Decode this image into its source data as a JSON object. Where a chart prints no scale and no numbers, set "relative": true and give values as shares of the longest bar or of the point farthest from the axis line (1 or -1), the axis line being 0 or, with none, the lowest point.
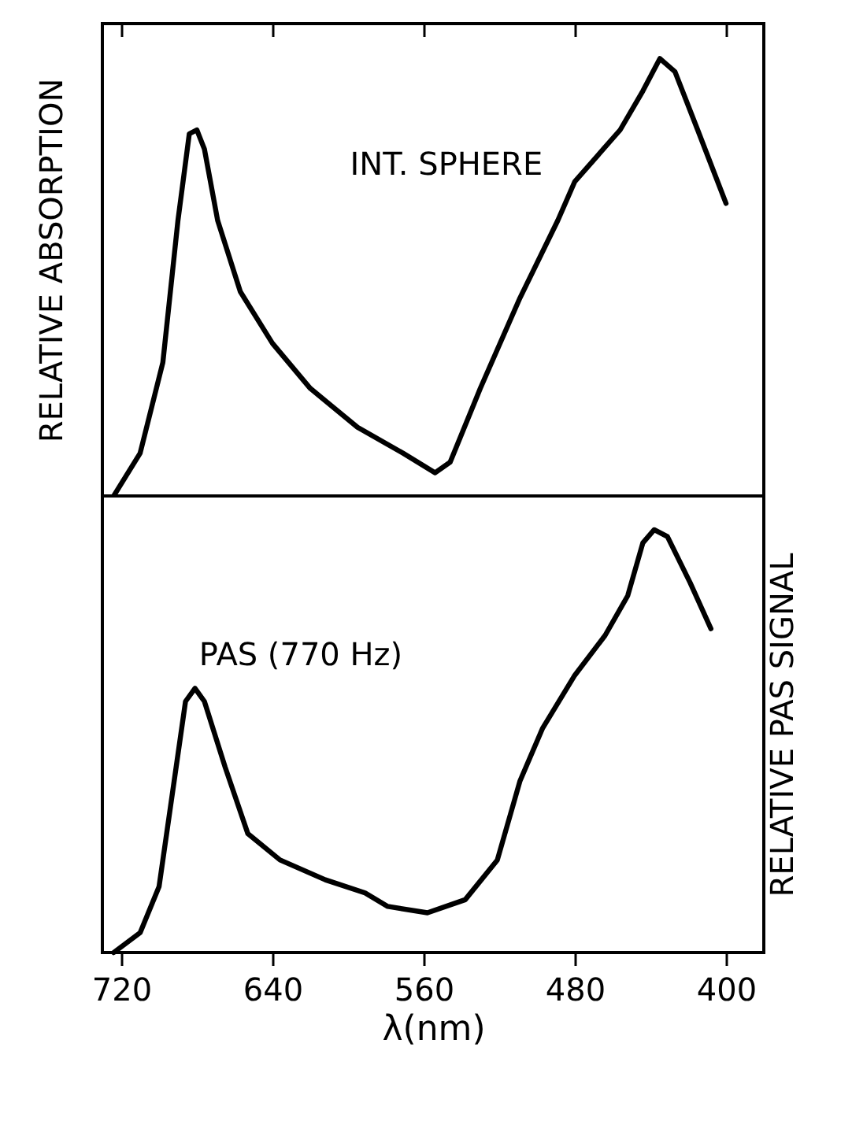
{
  "chart_data": [
    {
      "type": "line",
      "ylabel": "RELATIVE ABSORPTION",
      "relative": true,
      "xlim": [
        730,
        380
      ],
      "xticks": [
        720,
        640,
        560,
        480,
        400
      ],
      "tick_labels": false,
      "grid": false,
      "legend": false,
      "marker": "none",
      "line_style": "solid",
      "series": [
        {
          "name": "INT. SPHERE",
          "color": "#000000",
          "x": [
            724,
            710,
            698,
            690,
            684,
            680,
            676,
            669,
            657,
            640,
            620,
            595,
            571,
            554,
            546,
            530,
            509,
            489,
            480,
            468,
            456,
            444,
            435,
            427,
            415,
            400
          ],
          "values": [
            0,
            0.098,
            0.305,
            0.63,
            0.828,
            0.837,
            0.793,
            0.63,
            0.467,
            0.349,
            0.246,
            0.157,
            0.098,
            0.053,
            0.077,
            0.246,
            0.453,
            0.63,
            0.719,
            0.778,
            0.837,
            0.926,
            1,
            0.97,
            0.837,
            0.669
          ]
        }
      ]
    },
    {
      "type": "line",
      "xlabel": "λ(nm)",
      "y2label": "RELATIVE PAS SIGNAL",
      "relative": true,
      "xlim": [
        730,
        380
      ],
      "xticks": [
        720,
        640,
        560,
        480,
        400
      ],
      "tick_labels": "x",
      "grid": false,
      "legend": false,
      "marker": "none",
      "line_style": "solid",
      "series": [
        {
          "name": "PAS (770 Hz)",
          "color": "#000000",
          "x": [
            724,
            710,
            700,
            692,
            686,
            681,
            676,
            665,
            653,
            636,
            612,
            591,
            579,
            558,
            538,
            521,
            509,
            497,
            480,
            464,
            452,
            444,
            438,
            431,
            419,
            408
          ],
          "values": [
            0,
            0.047,
            0.156,
            0.406,
            0.594,
            0.625,
            0.594,
            0.438,
            0.281,
            0.219,
            0.172,
            0.141,
            0.109,
            0.094,
            0.125,
            0.219,
            0.406,
            0.531,
            0.656,
            0.75,
            0.844,
            0.969,
            1,
            0.984,
            0.875,
            0.766
          ]
        }
      ]
    }
  ]
}
